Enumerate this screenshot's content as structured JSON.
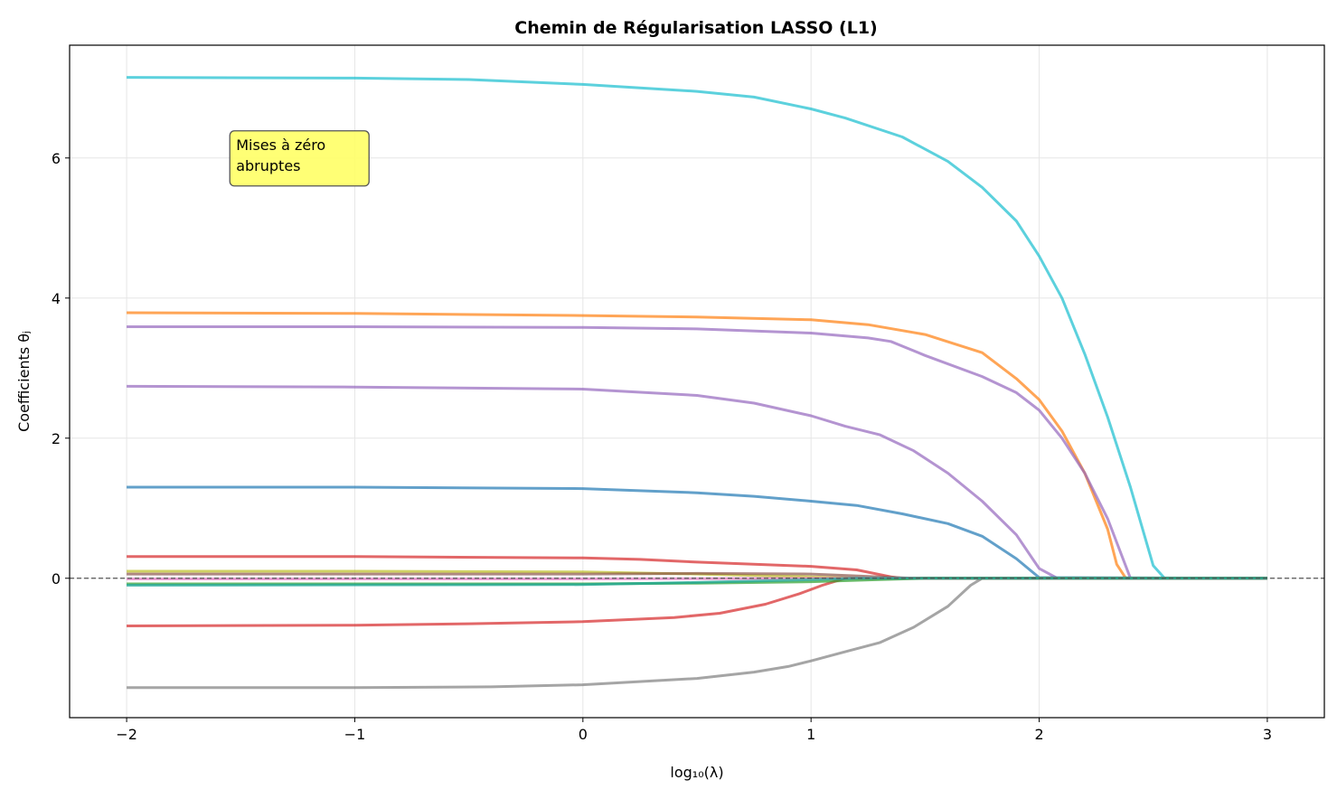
{
  "chart_data": {
    "type": "line",
    "title": "Chemin de Régularisation LASSO (L1)",
    "xlabel": "log₁₀(λ)",
    "ylabel": "Coefficients θⱼ",
    "xlim": [
      -2.25,
      3.25
    ],
    "ylim": [
      -1.99,
      7.61
    ],
    "xticks": [
      -2,
      -1,
      0,
      1,
      2,
      3
    ],
    "xtick_labels": [
      "−2",
      "−1",
      "0",
      "1",
      "2",
      "3"
    ],
    "yticks": [
      0,
      2,
      4,
      6
    ],
    "ytick_labels": [
      "0",
      "2",
      "4",
      "6"
    ],
    "grid": true,
    "zero_line": {
      "y": 0,
      "style": "dashed",
      "color": "#555555"
    },
    "annotation": {
      "text_lines": [
        "Mises à zéro",
        "abruptes"
      ],
      "x": -1.52,
      "y": 6.0,
      "background": "#ffff66"
    },
    "series": [
      {
        "color": "#17becf",
        "points": [
          [
            -2,
            7.15
          ],
          [
            -1,
            7.14
          ],
          [
            -0.5,
            7.12
          ],
          [
            0,
            7.05
          ],
          [
            0.25,
            7.0
          ],
          [
            0.5,
            6.95
          ],
          [
            0.75,
            6.87
          ],
          [
            1,
            6.7
          ],
          [
            1.15,
            6.57
          ],
          [
            1.4,
            6.3
          ],
          [
            1.6,
            5.95
          ],
          [
            1.75,
            5.58
          ],
          [
            1.9,
            5.1
          ],
          [
            2,
            4.6
          ],
          [
            2.1,
            4.0
          ],
          [
            2.2,
            3.2
          ],
          [
            2.3,
            2.3
          ],
          [
            2.4,
            1.3
          ],
          [
            2.5,
            0.18
          ],
          [
            2.55,
            0
          ],
          [
            3,
            0
          ]
        ]
      },
      {
        "color": "#ff7f0e",
        "points": [
          [
            -2,
            3.79
          ],
          [
            -1,
            3.78
          ],
          [
            0,
            3.75
          ],
          [
            0.5,
            3.73
          ],
          [
            1,
            3.69
          ],
          [
            1.25,
            3.62
          ],
          [
            1.5,
            3.48
          ],
          [
            1.75,
            3.22
          ],
          [
            1.9,
            2.85
          ],
          [
            2,
            2.55
          ],
          [
            2.1,
            2.1
          ],
          [
            2.2,
            1.5
          ],
          [
            2.3,
            0.7
          ],
          [
            2.34,
            0.2
          ],
          [
            2.38,
            0
          ],
          [
            3,
            0
          ]
        ]
      },
      {
        "color": "#9467bd",
        "points": [
          [
            -2,
            3.59
          ],
          [
            -1,
            3.59
          ],
          [
            0,
            3.58
          ],
          [
            0.5,
            3.56
          ],
          [
            1,
            3.5
          ],
          [
            1.25,
            3.43
          ],
          [
            1.35,
            3.38
          ],
          [
            1.5,
            3.18
          ],
          [
            1.75,
            2.88
          ],
          [
            1.9,
            2.65
          ],
          [
            2,
            2.4
          ],
          [
            2.1,
            2.0
          ],
          [
            2.2,
            1.5
          ],
          [
            2.3,
            0.85
          ],
          [
            2.4,
            0
          ],
          [
            3,
            0
          ]
        ]
      },
      {
        "color": "#9467bd",
        "points": [
          [
            -2,
            2.74
          ],
          [
            -1,
            2.73
          ],
          [
            0,
            2.7
          ],
          [
            0.5,
            2.61
          ],
          [
            0.75,
            2.5
          ],
          [
            1,
            2.32
          ],
          [
            1.15,
            2.17
          ],
          [
            1.3,
            2.05
          ],
          [
            1.45,
            1.82
          ],
          [
            1.6,
            1.5
          ],
          [
            1.75,
            1.1
          ],
          [
            1.9,
            0.62
          ],
          [
            2,
            0.14
          ],
          [
            2.08,
            0
          ],
          [
            3,
            0
          ]
        ]
      },
      {
        "color": "#1f77b4",
        "points": [
          [
            -2,
            1.3
          ],
          [
            -1,
            1.3
          ],
          [
            0,
            1.28
          ],
          [
            0.5,
            1.22
          ],
          [
            0.75,
            1.17
          ],
          [
            1,
            1.1
          ],
          [
            1.2,
            1.04
          ],
          [
            1.4,
            0.92
          ],
          [
            1.6,
            0.78
          ],
          [
            1.75,
            0.6
          ],
          [
            1.9,
            0.28
          ],
          [
            2,
            0.01
          ],
          [
            3,
            0
          ]
        ]
      },
      {
        "color": "#d62728",
        "points": [
          [
            -2,
            0.31
          ],
          [
            -1,
            0.31
          ],
          [
            0,
            0.29
          ],
          [
            0.25,
            0.27
          ],
          [
            0.5,
            0.23
          ],
          [
            1,
            0.17
          ],
          [
            1.2,
            0.12
          ],
          [
            1.35,
            0.02
          ],
          [
            1.4,
            0
          ],
          [
            3,
            0
          ]
        ]
      },
      {
        "color": "#d62728",
        "points": [
          [
            -2,
            -0.68
          ],
          [
            -1,
            -0.67
          ],
          [
            -0.5,
            -0.65
          ],
          [
            0,
            -0.62
          ],
          [
            0.4,
            -0.56
          ],
          [
            0.6,
            -0.5
          ],
          [
            0.8,
            -0.37
          ],
          [
            0.95,
            -0.22
          ],
          [
            1.05,
            -0.1
          ],
          [
            1.15,
            0
          ],
          [
            3,
            0
          ]
        ]
      },
      {
        "color": "#7f7f7f",
        "points": [
          [
            -2,
            -1.56
          ],
          [
            -1,
            -1.56
          ],
          [
            -0.4,
            -1.55
          ],
          [
            0,
            -1.52
          ],
          [
            0.5,
            -1.43
          ],
          [
            0.75,
            -1.34
          ],
          [
            0.9,
            -1.26
          ],
          [
            1,
            -1.18
          ],
          [
            1.15,
            -1.05
          ],
          [
            1.3,
            -0.92
          ],
          [
            1.45,
            -0.7
          ],
          [
            1.6,
            -0.4
          ],
          [
            1.7,
            -0.1
          ],
          [
            1.75,
            0
          ],
          [
            3,
            0
          ]
        ]
      },
      {
        "color": "#bcbd22",
        "points": [
          [
            -2,
            0.1
          ],
          [
            -1,
            0.1
          ],
          [
            0,
            0.09
          ],
          [
            0.5,
            0.06
          ],
          [
            1,
            0.02
          ],
          [
            1.2,
            0
          ],
          [
            3,
            0
          ]
        ]
      },
      {
        "color": "#8c564b",
        "points": [
          [
            -2,
            0.06
          ],
          [
            -1,
            0.06
          ],
          [
            0,
            0.06
          ],
          [
            0.5,
            0.07
          ],
          [
            1,
            0.06
          ],
          [
            1.3,
            0.02
          ],
          [
            1.45,
            0
          ],
          [
            3,
            0
          ]
        ]
      },
      {
        "color": "#e377c2",
        "points": [
          [
            -2,
            -0.01
          ],
          [
            0,
            -0.01
          ],
          [
            0.5,
            -0.005
          ],
          [
            1,
            0
          ],
          [
            3,
            0
          ]
        ]
      },
      {
        "color": "#2ca02c",
        "points": [
          [
            -2,
            -0.08
          ],
          [
            0,
            -0.08
          ],
          [
            0.5,
            -0.07
          ],
          [
            1,
            -0.05
          ],
          [
            1.3,
            -0.02
          ],
          [
            1.5,
            0
          ],
          [
            3,
            0
          ]
        ]
      },
      {
        "color": "#17a59a",
        "points": [
          [
            -2,
            -0.1
          ],
          [
            0,
            -0.09
          ],
          [
            0.5,
            -0.06
          ],
          [
            1,
            -0.02
          ],
          [
            1.2,
            0
          ],
          [
            3,
            0
          ]
        ]
      }
    ]
  }
}
